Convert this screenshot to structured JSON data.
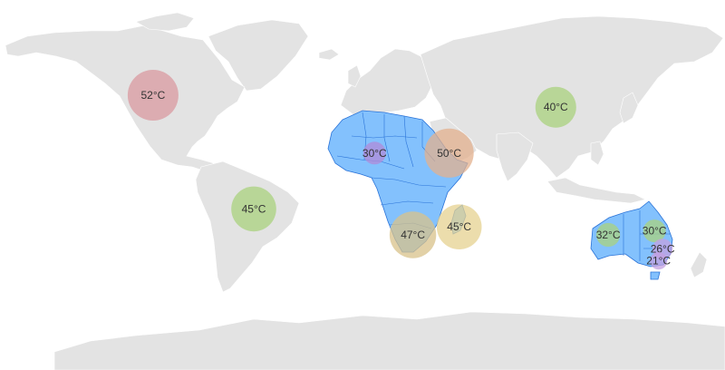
{
  "map": {
    "land_color": "#e3e3e3",
    "highlight_color": "#83c1fd",
    "highlight_border": "#2a73d8",
    "highlighted_regions": [
      "africa",
      "madagascar",
      "australia"
    ],
    "markers": [
      {
        "id": "north-america",
        "label": "52°C",
        "value": 52,
        "color": "#d99aa0",
        "lat": 45,
        "lon": -104
      },
      {
        "id": "south-america",
        "label": "45°C",
        "value": 45,
        "color": "#a9d17e",
        "lat": -12,
        "lon": -54
      },
      {
        "id": "west-africa",
        "label": "30°C",
        "value": 30,
        "color": "#b089d8",
        "lat": 16,
        "lon": 6
      },
      {
        "id": "horn-of-africa",
        "label": "50°C",
        "value": 50,
        "color": "#e3b08e",
        "lat": 16,
        "lon": 43
      },
      {
        "id": "south-africa",
        "label": "47°C",
        "value": 47,
        "color": "#d8c28a",
        "lat": -25,
        "lon": 25
      },
      {
        "id": "madagascar",
        "label": "45°C",
        "value": 45,
        "color": "#e5d190",
        "lat": -21,
        "lon": 48
      },
      {
        "id": "asia",
        "label": "40°C",
        "value": 40,
        "color": "#a9d17e",
        "lat": 39,
        "lon": 96
      },
      {
        "id": "western-australia",
        "label": "32°C",
        "value": 32,
        "color": "#a9d17e",
        "lat": -25,
        "lon": 122
      },
      {
        "id": "queensland",
        "label": "30°C",
        "value": 30,
        "color": "#a9d17e",
        "lat": -23,
        "lon": 145
      },
      {
        "id": "new-south-wales",
        "label": "26°C",
        "value": 26,
        "color": "#c3a0e0",
        "lat": -32,
        "lon": 149
      },
      {
        "id": "victoria",
        "label": "21°C",
        "value": 21,
        "color": "#c3a0e0",
        "lat": -38,
        "lon": 147
      }
    ]
  }
}
